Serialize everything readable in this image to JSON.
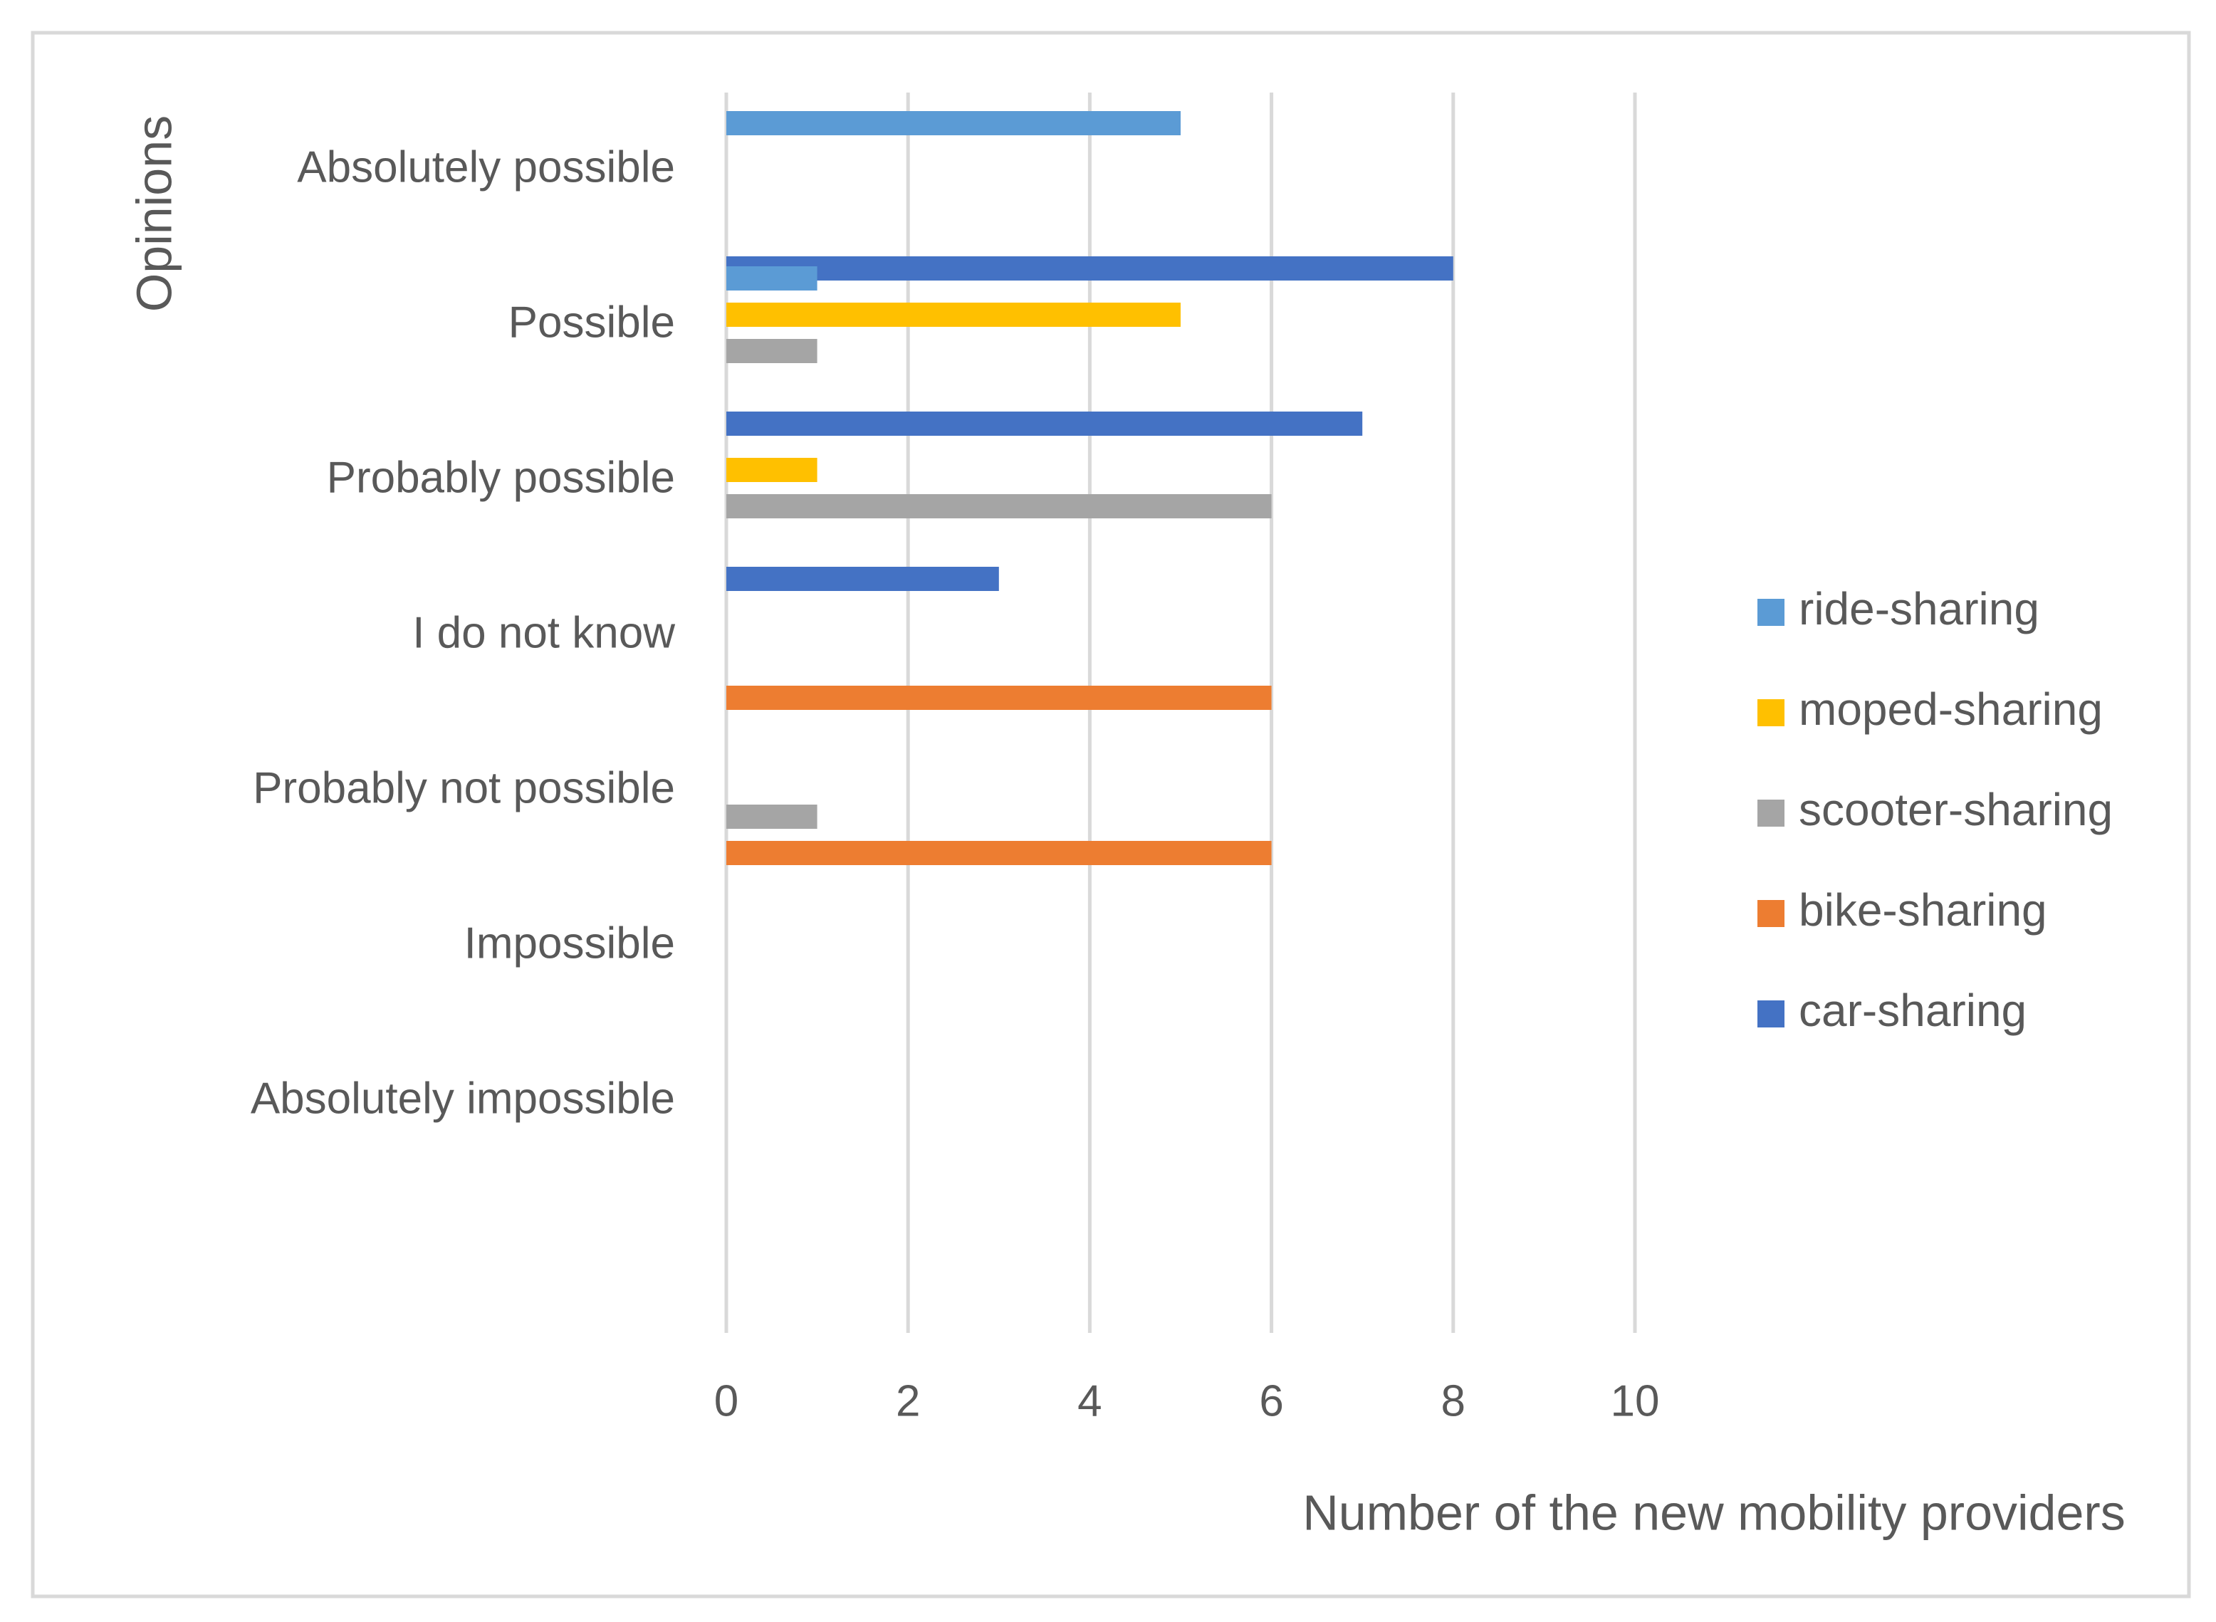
{
  "chart_data": {
    "type": "bar",
    "orientation": "horizontal",
    "title": "",
    "xlabel": "Number of the new mobility providers",
    "ylabel": "Opinions",
    "xlim": [
      0,
      10
    ],
    "xticks": [
      0,
      2,
      4,
      6,
      8,
      10
    ],
    "xtick_labels": [
      "0",
      "2",
      "4",
      "6",
      "8",
      "10"
    ],
    "grid": "vertical",
    "legend_position": "right",
    "categories": [
      "Absolutely possible",
      "Possible",
      "Probably possible",
      "I do not know",
      "Probably not possible",
      "Impossible",
      "Absolutely impossible"
    ],
    "series": [
      {
        "name": "ride-sharing",
        "color": "#5B9BD5",
        "values": [
          5,
          1,
          0,
          0,
          0,
          0,
          0
        ]
      },
      {
        "name": "moped-sharing",
        "color": "#FFC000",
        "values": [
          0,
          5,
          1,
          0,
          0,
          0,
          0
        ]
      },
      {
        "name": "scooter-sharing",
        "color": "#A5A5A5",
        "values": [
          0,
          1,
          6,
          0,
          1,
          0,
          0
        ]
      },
      {
        "name": "bike-sharing",
        "color": "#ED7D31",
        "values": [
          0,
          0,
          0,
          6,
          6,
          0,
          0
        ]
      },
      {
        "name": "car-sharing",
        "color": "#4472C4",
        "values": [
          8,
          7,
          3,
          0,
          0,
          0,
          0
        ]
      }
    ]
  }
}
